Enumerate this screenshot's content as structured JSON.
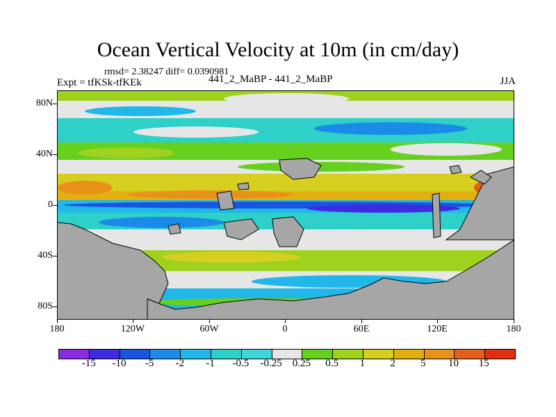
{
  "title": "Ocean Vertical Velocity at 10m (in cm/day)",
  "stats": "rmsd= 2.38247 diff= 0.0390981",
  "experiment": "Expt = tfKSk-tfKEk",
  "experiment_names": "441_2_MaBP - 441_2_MaBP",
  "season": "JJA",
  "map": {
    "y_labels": [
      "80N",
      "40N",
      "0",
      "40S",
      "80S"
    ],
    "x_labels": [
      "180",
      "120W",
      "60W",
      "0",
      "60E",
      "120E",
      "180"
    ]
  },
  "colorbar": {
    "colors": [
      "#8a2be2",
      "#3f2be0",
      "#1a55e0",
      "#1b8ae8",
      "#21b7e8",
      "#2ed0c8",
      "#3fd4d8",
      "#e6e6e6",
      "#66d01f",
      "#9ed21e",
      "#d6cf1f",
      "#e1b010",
      "#e8921a",
      "#e55f1a",
      "#e03010"
    ],
    "labels": [
      "-15",
      "-10",
      "-5",
      "-2",
      "-1",
      "-0.5",
      "-0.25",
      "0.25",
      "0.5",
      "1",
      "2",
      "5",
      "10",
      "15"
    ]
  },
  "palette": {
    "land": "#a6a6a6",
    "neutral": "#e6e6e6"
  }
}
